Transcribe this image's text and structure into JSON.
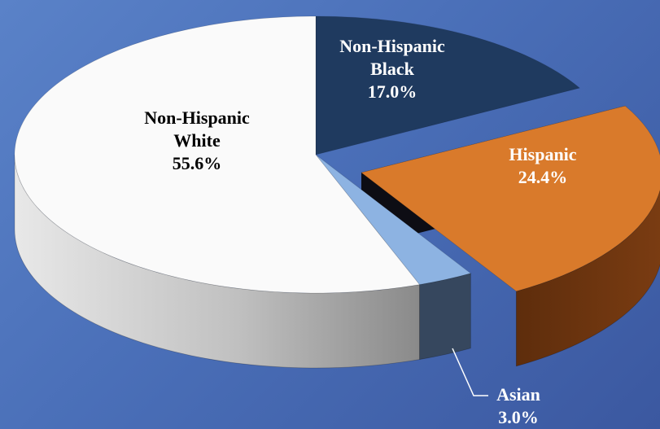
{
  "chart_data": {
    "type": "pie",
    "title": "",
    "slices": [
      {
        "label_lines": [
          "Non-Hispanic",
          "Black"
        ],
        "percent_label": "17.0%",
        "value": 17.0,
        "color": "#1f3a5f",
        "side_color": "#13243b",
        "text_color": "#ffffff"
      },
      {
        "label_lines": [
          "Hispanic"
        ],
        "percent_label": "24.4%",
        "value": 24.4,
        "color": "#d97a2b",
        "side_color": "#6b3510",
        "text_color": "#ffffff"
      },
      {
        "label_lines": [
          "Asian"
        ],
        "percent_label": "3.0%",
        "value": 3.0,
        "color": "#8db3e2",
        "side_color": "#36475e",
        "text_color": "#ffffff"
      },
      {
        "label_lines": [
          "Non-Hispanic",
          "White"
        ],
        "percent_label": "55.6%",
        "value": 55.6,
        "color": "#fafafa",
        "side_color": "#b5b5b5",
        "text_color": "#000000"
      }
    ]
  }
}
